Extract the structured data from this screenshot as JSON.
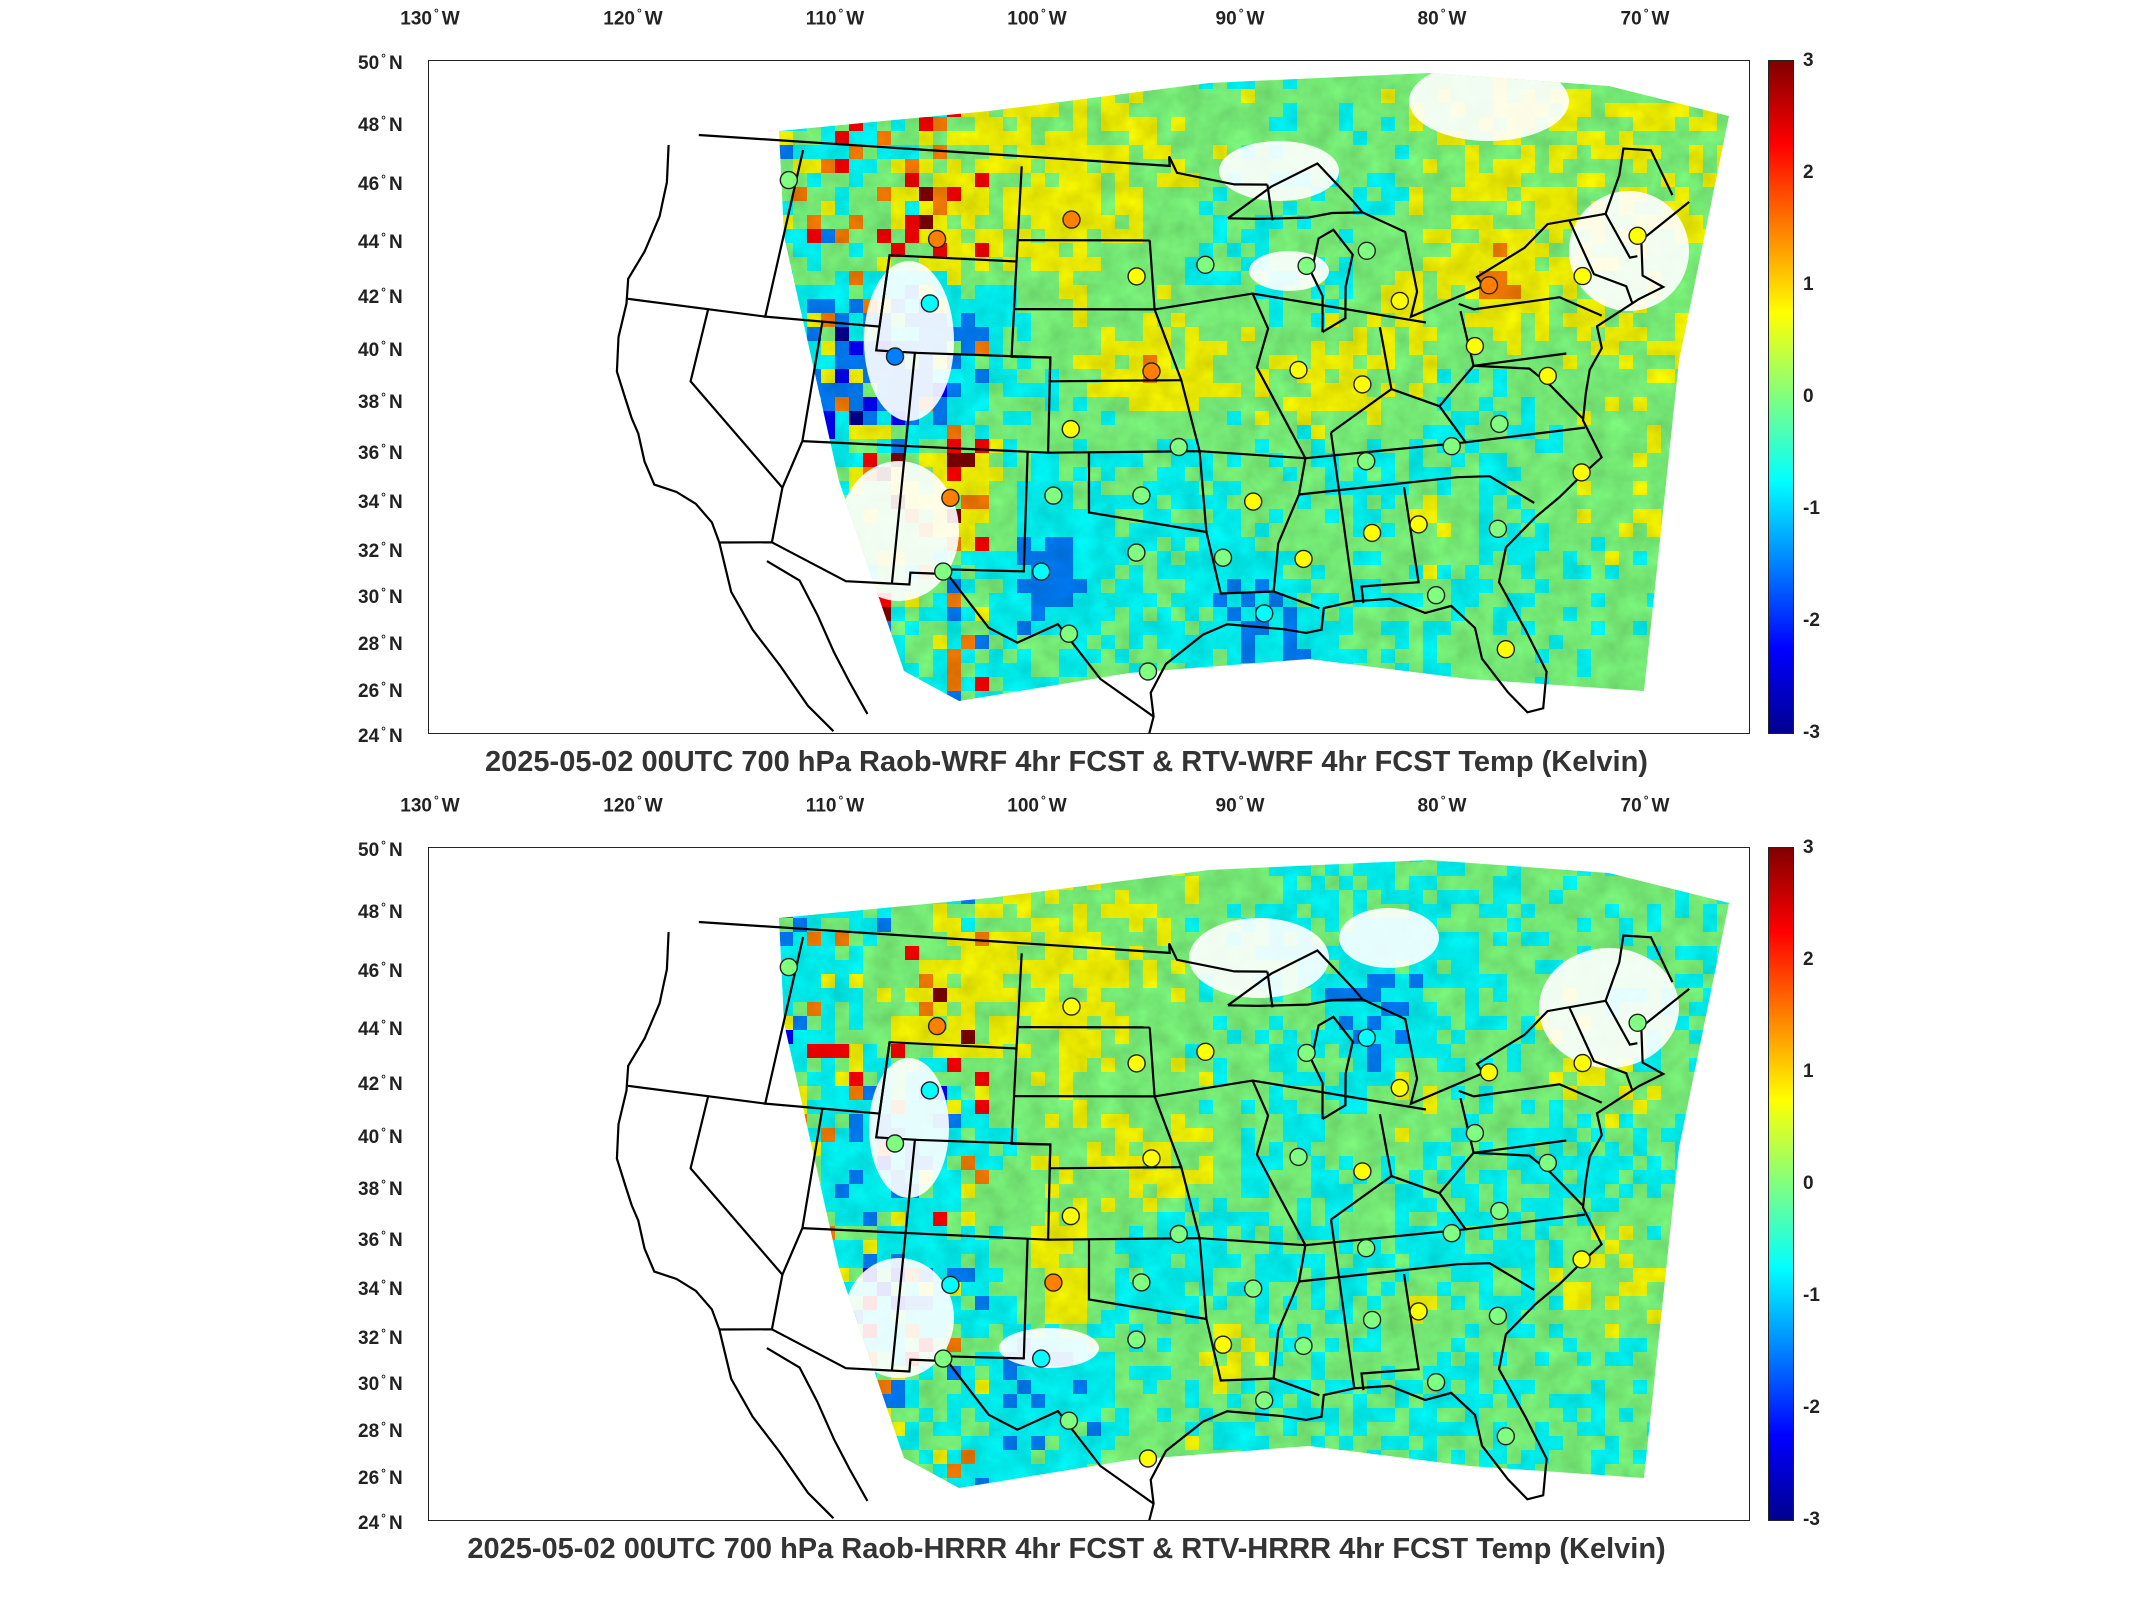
{
  "panels": [
    {
      "title": "2025-05-02 00UTC 700 hPa Raob-WRF 4hr FCST & RTV-WRF 4hr FCST Temp (Kelvin)",
      "lon_ticks": [
        "130",
        "120",
        "110",
        "100",
        "90",
        "80",
        "70"
      ],
      "lon_hemisphere": "W",
      "lat_ticks": [
        "50",
        "48",
        "46",
        "44",
        "42",
        "40",
        "38",
        "36",
        "34",
        "32",
        "30",
        "28",
        "26",
        "24"
      ],
      "lat_hemisphere": "N",
      "colorbar_ticks": [
        "3",
        "2",
        "1",
        "0",
        "-1",
        "-2",
        "-3"
      ]
    },
    {
      "title": "2025-05-02 00UTC 700 hPa Raob-HRRR 4hr FCST & RTV-HRRR 4hr FCST Temp (Kelvin)",
      "lon_ticks": [
        "130",
        "120",
        "110",
        "100",
        "90",
        "80",
        "70"
      ],
      "lon_hemisphere": "W",
      "lat_ticks": [
        "50",
        "48",
        "46",
        "44",
        "42",
        "40",
        "38",
        "36",
        "34",
        "32",
        "30",
        "28",
        "26",
        "24"
      ],
      "lat_hemisphere": "N",
      "colorbar_ticks": [
        "3",
        "2",
        "1",
        "0",
        "-1",
        "-2",
        "-3"
      ]
    }
  ],
  "degree_symbol": "°",
  "colormap": [
    "#00008f",
    "#0000ff",
    "#0080ff",
    "#00ffff",
    "#80ff80",
    "#ffff00",
    "#ff8000",
    "#ff0000",
    "#800000"
  ],
  "colorbar_range": [
    -3,
    3
  ],
  "raob_stations": [
    {
      "lon": -117.4,
      "lat": 47.7,
      "top": 0.1,
      "bottom": -0.2
    },
    {
      "lon": -108.5,
      "lat": 45.8,
      "top": 1.3,
      "bottom": 1.2
    },
    {
      "lon": -101.0,
      "lat": 46.8,
      "top": 1.2,
      "bottom": 1.1
    },
    {
      "lon": -97.4,
      "lat": 44.4,
      "top": 0.5,
      "bottom": 0.6
    },
    {
      "lon": -93.6,
      "lat": 44.8,
      "top": 0.3,
      "bottom": 0.5
    },
    {
      "lon": -88.1,
      "lat": 44.5,
      "top": 0.2,
      "bottom": 0.3
    },
    {
      "lon": -84.7,
      "lat": 44.9,
      "top": 0.3,
      "bottom": -0.8
    },
    {
      "lon": -83.5,
      "lat": 42.7,
      "top": 1.1,
      "bottom": 0.8
    },
    {
      "lon": -78.7,
      "lat": 42.9,
      "top": 1.6,
      "bottom": 0.4
    },
    {
      "lon": -73.8,
      "lat": 42.7,
      "top": 1.0,
      "bottom": 0.9
    },
    {
      "lon": -70.3,
      "lat": 43.9,
      "top": 0.8,
      "bottom": 0.3
    },
    {
      "lon": -108.5,
      "lat": 43.1,
      "top": -0.6,
      "bottom": -0.4
    },
    {
      "lon": -110.0,
      "lat": 40.8,
      "top": -1.2,
      "bottom": -0.3
    },
    {
      "lon": -96.8,
      "lat": 40.4,
      "top": 1.4,
      "bottom": 1.1
    },
    {
      "lon": -100.9,
      "lat": 38.0,
      "top": 0.5,
      "bottom": 1.0
    },
    {
      "lon": -89.3,
      "lat": 40.2,
      "top": 0.8,
      "bottom": 0.3
    },
    {
      "lon": -86.2,
      "lat": 39.4,
      "top": 1.0,
      "bottom": 0.4
    },
    {
      "lon": -80.2,
      "lat": 40.5,
      "top": 0.4,
      "bottom": 0.3
    },
    {
      "lon": -77.0,
      "lat": 38.9,
      "top": 0.6,
      "bottom": -0.2
    },
    {
      "lon": -95.6,
      "lat": 37.2,
      "top": 0.2,
      "bottom": 0.0
    },
    {
      "lon": -106.6,
      "lat": 35.0,
      "top": 1.5,
      "bottom": -0.4
    },
    {
      "lon": -101.7,
      "lat": 35.2,
      "top": -0.2,
      "bottom": 1.2
    },
    {
      "lon": -97.5,
      "lat": 35.2,
      "top": 0.0,
      "bottom": -0.3
    },
    {
      "lon": -92.2,
      "lat": 34.8,
      "top": 0.4,
      "bottom": 0.2
    },
    {
      "lon": -86.6,
      "lat": 36.2,
      "top": 0.0,
      "bottom": 0.1
    },
    {
      "lon": -82.4,
      "lat": 36.5,
      "top": 0.1,
      "bottom": -0.2
    },
    {
      "lon": -79.9,
      "lat": 37.2,
      "top": 0.1,
      "bottom": 0.0
    },
    {
      "lon": -76.6,
      "lat": 34.8,
      "top": 0.7,
      "bottom": 0.8
    },
    {
      "lon": -86.8,
      "lat": 33.2,
      "top": 0.4,
      "bottom": 0.3
    },
    {
      "lon": -84.6,
      "lat": 33.4,
      "top": 0.9,
      "bottom": 0.9
    },
    {
      "lon": -81.0,
      "lat": 32.9,
      "top": 0.2,
      "bottom": 0.2
    },
    {
      "lon": -90.1,
      "lat": 32.3,
      "top": 0.4,
      "bottom": 0.3
    },
    {
      "lon": -93.8,
      "lat": 32.5,
      "top": -0.3,
      "bottom": 1.0
    },
    {
      "lon": -106.7,
      "lat": 31.9,
      "top": 0.3,
      "bottom": 0.3
    },
    {
      "lon": -102.2,
      "lat": 32.0,
      "top": -1.0,
      "bottom": -0.8
    },
    {
      "lon": -97.8,
      "lat": 32.8,
      "top": 0.1,
      "bottom": 0.2
    },
    {
      "lon": -92.1,
      "lat": 30.1,
      "top": -0.6,
      "bottom": 0.1
    },
    {
      "lon": -84.3,
      "lat": 30.4,
      "top": 0.3,
      "bottom": 0.0
    },
    {
      "lon": -97.4,
      "lat": 27.8,
      "top": 0.3,
      "bottom": 0.6
    },
    {
      "lon": -81.6,
      "lat": 27.9,
      "top": 0.5,
      "bottom": 0.3
    },
    {
      "lon": -100.9,
      "lat": 29.4,
      "top": 0.2,
      "bottom": -0.2
    }
  ]
}
